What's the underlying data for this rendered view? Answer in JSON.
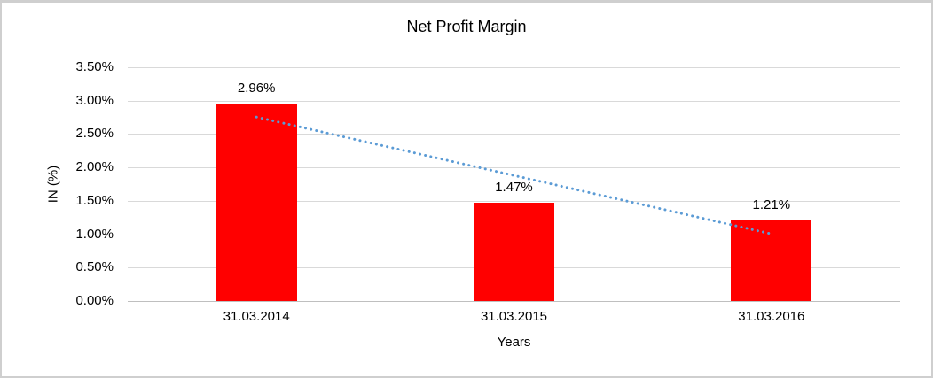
{
  "chart_data": {
    "type": "bar",
    "title": "Net Profit Margin",
    "xlabel": "Years",
    "ylabel": "IN (%)",
    "categories": [
      "31.03.2014",
      "31.03.2015",
      "31.03.2016"
    ],
    "values": [
      2.96,
      1.47,
      1.21
    ],
    "value_labels": [
      "2.96%",
      "1.47%",
      "1.21%"
    ],
    "yticks": [
      "0.00%",
      "0.50%",
      "1.00%",
      "1.50%",
      "2.00%",
      "2.50%",
      "3.00%",
      "3.50%"
    ],
    "ytick_values": [
      0,
      0.5,
      1.0,
      1.5,
      2.0,
      2.5,
      3.0,
      3.5
    ],
    "ylim": [
      0,
      3.5
    ],
    "grid": true,
    "legend": "none",
    "bar_color": "#ff0000",
    "gridline_color": "#d9d9d9",
    "trendline": {
      "type": "linear",
      "style": "dotted",
      "color": "#5b9bd5",
      "start_value": 2.755,
      "end_value": 1.005
    }
  }
}
